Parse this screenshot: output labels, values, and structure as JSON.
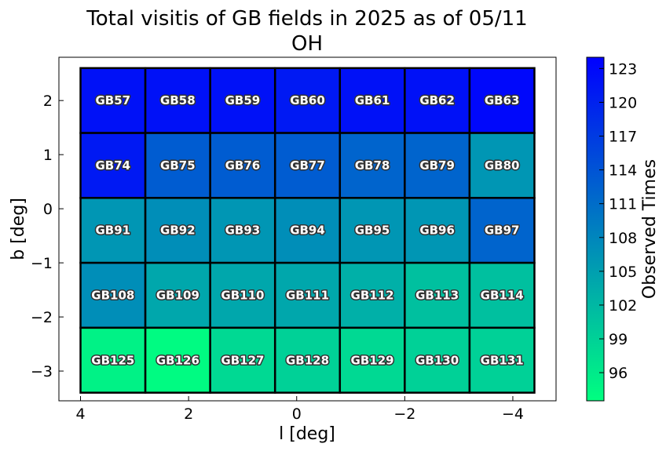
{
  "chart_data": {
    "type": "heatmap",
    "title": "Total visitis of GB fields in 2025 as of 05/11",
    "subtitle": "OH",
    "xlabel": "l [deg]",
    "ylabel": "b [deg]",
    "colorbar_label": "Observed Times",
    "xlim": [
      4.4,
      -4.8
    ],
    "ylim": [
      -3.55,
      2.8
    ],
    "x_ticks": [
      {
        "value": 4,
        "label": "4"
      },
      {
        "value": 2,
        "label": "2"
      },
      {
        "value": 0,
        "label": "0"
      },
      {
        "value": -2,
        "label": "−2"
      },
      {
        "value": -4,
        "label": "−4"
      }
    ],
    "y_ticks": [
      {
        "value": 2,
        "label": "2"
      },
      {
        "value": 1,
        "label": "1"
      },
      {
        "value": 0,
        "label": "0"
      },
      {
        "value": -1,
        "label": "−1"
      },
      {
        "value": -2,
        "label": "−2"
      },
      {
        "value": -3,
        "label": "−3"
      }
    ],
    "colorbar": {
      "min": 93.5,
      "max": 124,
      "colormap": [
        "#00ff80",
        "#0000ff"
      ],
      "ticks": [
        96,
        99,
        102,
        105,
        108,
        111,
        114,
        117,
        120,
        123
      ]
    },
    "cells": [
      {
        "name": "GB57",
        "l": 3.4,
        "b": 2.0,
        "value": 122
      },
      {
        "name": "GB58",
        "l": 2.2,
        "b": 2.0,
        "value": 122
      },
      {
        "name": "GB59",
        "l": 1.0,
        "b": 2.0,
        "value": 122
      },
      {
        "name": "GB60",
        "l": -0.2,
        "b": 2.0,
        "value": 121
      },
      {
        "name": "GB61",
        "l": -1.4,
        "b": 2.0,
        "value": 122
      },
      {
        "name": "GB62",
        "l": -2.6,
        "b": 2.0,
        "value": 122
      },
      {
        "name": "GB63",
        "l": -3.8,
        "b": 2.0,
        "value": 123
      },
      {
        "name": "GB74",
        "l": 3.4,
        "b": 0.8,
        "value": 121
      },
      {
        "name": "GB75",
        "l": 2.2,
        "b": 0.8,
        "value": 113
      },
      {
        "name": "GB76",
        "l": 1.0,
        "b": 0.8,
        "value": 113
      },
      {
        "name": "GB77",
        "l": -0.2,
        "b": 0.8,
        "value": 113
      },
      {
        "name": "GB78",
        "l": -1.4,
        "b": 0.8,
        "value": 112
      },
      {
        "name": "GB79",
        "l": -2.6,
        "b": 0.8,
        "value": 112
      },
      {
        "name": "GB80",
        "l": -3.8,
        "b": 0.8,
        "value": 106
      },
      {
        "name": "GB91",
        "l": 3.4,
        "b": -0.4,
        "value": 106
      },
      {
        "name": "GB92",
        "l": 2.2,
        "b": -0.4,
        "value": 107
      },
      {
        "name": "GB93",
        "l": 1.0,
        "b": -0.4,
        "value": 106
      },
      {
        "name": "GB94",
        "l": -0.2,
        "b": -0.4,
        "value": 107
      },
      {
        "name": "GB95",
        "l": -1.4,
        "b": -0.4,
        "value": 106
      },
      {
        "name": "GB96",
        "l": -2.6,
        "b": -0.4,
        "value": 106
      },
      {
        "name": "GB97",
        "l": -3.8,
        "b": -0.4,
        "value": 112
      },
      {
        "name": "GB108",
        "l": 3.4,
        "b": -1.6,
        "value": 107
      },
      {
        "name": "GB109",
        "l": 2.2,
        "b": -1.6,
        "value": 104
      },
      {
        "name": "GB110",
        "l": 1.0,
        "b": -1.6,
        "value": 104
      },
      {
        "name": "GB111",
        "l": -0.2,
        "b": -1.6,
        "value": 104
      },
      {
        "name": "GB112",
        "l": -1.4,
        "b": -1.6,
        "value": 103
      },
      {
        "name": "GB113",
        "l": -2.6,
        "b": -1.6,
        "value": 101
      },
      {
        "name": "GB114",
        "l": -3.8,
        "b": -1.6,
        "value": 101
      },
      {
        "name": "GB125",
        "l": 3.4,
        "b": -2.8,
        "value": 95
      },
      {
        "name": "GB126",
        "l": 2.2,
        "b": -2.8,
        "value": 94
      },
      {
        "name": "GB127",
        "l": 1.0,
        "b": -2.8,
        "value": 98
      },
      {
        "name": "GB128",
        "l": -0.2,
        "b": -2.8,
        "value": 99
      },
      {
        "name": "GB129",
        "l": -1.4,
        "b": -2.8,
        "value": 98
      },
      {
        "name": "GB130",
        "l": -2.6,
        "b": -2.8,
        "value": 99
      },
      {
        "name": "GB131",
        "l": -3.8,
        "b": -2.8,
        "value": 99
      }
    ]
  }
}
